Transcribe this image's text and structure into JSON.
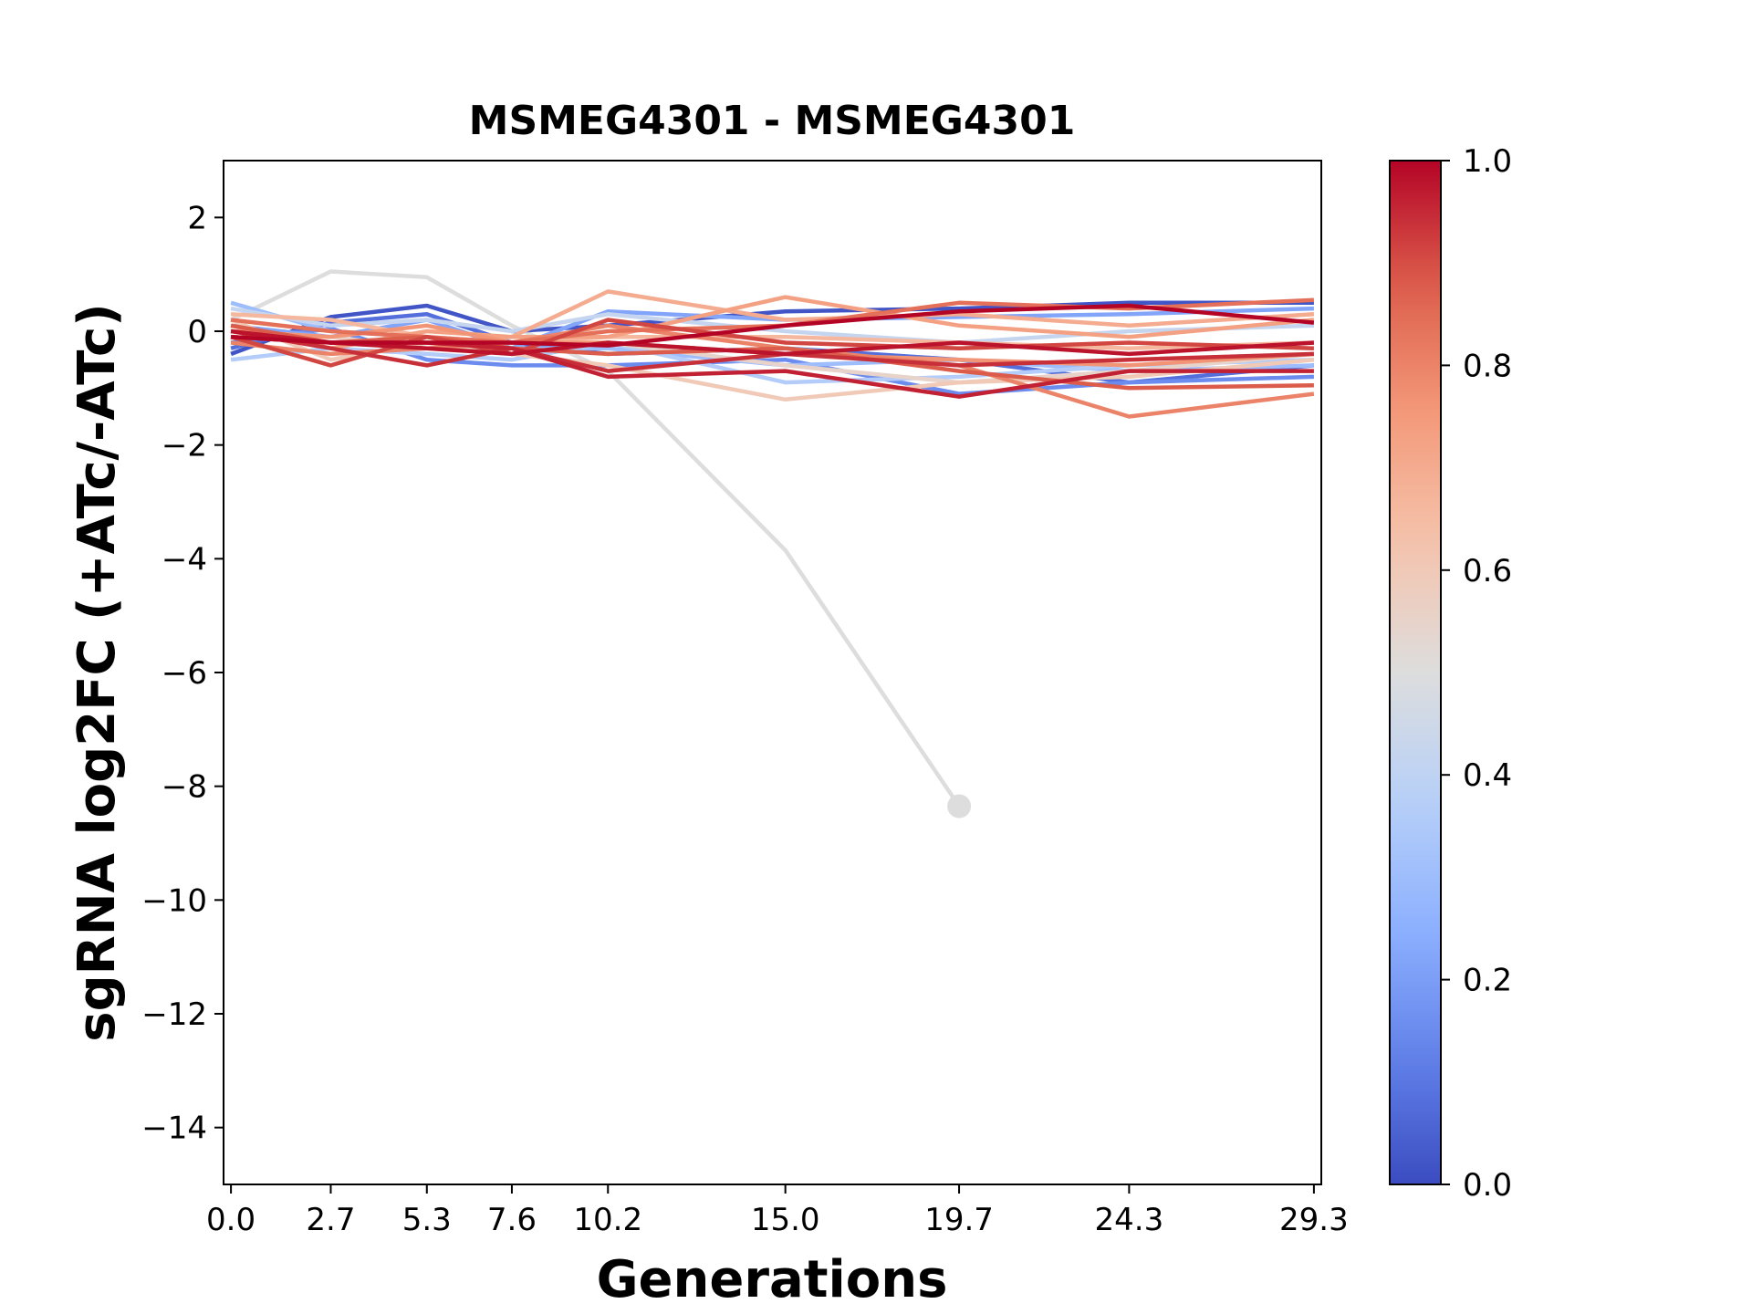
{
  "chart_data": {
    "type": "line",
    "title": "MSMEG4301 - MSMEG4301",
    "xlabel": "Generations",
    "ylabel": "sgRNA log2FC (+ATc/-ATc)",
    "x_ticks": [
      "0.0",
      "2.7",
      "5.3",
      "7.6",
      "10.2",
      "15.0",
      "19.7",
      "24.3",
      "29.3"
    ],
    "y_ticks": [
      "2",
      "0",
      "−2",
      "−4",
      "−6",
      "−8",
      "−10",
      "−12",
      "−14"
    ],
    "xlim": [
      -0.2,
      29.5
    ],
    "ylim": [
      -15,
      3
    ],
    "colorbar": {
      "cmap": "coolwarm",
      "range": [
        0,
        1
      ],
      "ticks": [
        "0.0",
        "0.2",
        "0.4",
        "0.6",
        "0.8",
        "1.0"
      ]
    },
    "x": [
      0.0,
      2.7,
      5.3,
      7.6,
      10.2,
      15.0,
      19.7,
      24.3,
      29.3
    ],
    "series": [
      {
        "c": 0.5,
        "values": [
          0.2,
          1.05,
          0.95,
          0.1,
          -0.7,
          -3.85,
          -8.35,
          null,
          null
        ],
        "end_marker": true
      },
      {
        "c": 0.02,
        "values": [
          -0.4,
          0.25,
          0.45,
          0.0,
          0.1,
          0.35,
          0.4,
          0.5,
          0.5
        ]
      },
      {
        "c": 0.08,
        "values": [
          -0.3,
          0.15,
          0.3,
          -0.2,
          -0.4,
          -0.3,
          -0.5,
          -0.9,
          -0.6
        ]
      },
      {
        "c": 0.15,
        "values": [
          -0.2,
          0.05,
          -0.5,
          -0.6,
          -0.6,
          -0.5,
          -1.1,
          -0.9,
          -0.8
        ]
      },
      {
        "c": 0.22,
        "values": [
          0.1,
          -0.1,
          0.2,
          -0.3,
          0.35,
          0.2,
          0.25,
          0.3,
          0.4
        ]
      },
      {
        "c": 0.3,
        "values": [
          0.5,
          0.0,
          -0.1,
          -0.3,
          -0.3,
          -0.6,
          -0.5,
          -0.7,
          -0.6
        ]
      },
      {
        "c": 0.36,
        "values": [
          -0.5,
          -0.3,
          -0.4,
          -0.5,
          -0.2,
          -0.9,
          -0.8,
          -0.6,
          -0.5
        ]
      },
      {
        "c": 0.42,
        "values": [
          0.4,
          0.1,
          0.2,
          0.0,
          0.3,
          0.0,
          -0.2,
          0.0,
          0.1
        ]
      },
      {
        "c": 0.55,
        "values": [
          0.0,
          -0.1,
          -0.3,
          -0.4,
          -0.2,
          -0.6,
          -0.9,
          -0.7,
          -0.4
        ]
      },
      {
        "c": 0.6,
        "values": [
          0.2,
          -0.5,
          -0.2,
          -0.4,
          -0.6,
          -1.2,
          -0.9,
          -0.8,
          -0.5
        ]
      },
      {
        "c": 0.66,
        "values": [
          0.3,
          0.2,
          -0.1,
          -0.2,
          -0.1,
          -0.1,
          -0.2,
          -0.3,
          -0.2
        ]
      },
      {
        "c": 0.7,
        "values": [
          -0.1,
          -0.2,
          -0.2,
          -0.1,
          0.7,
          0.2,
          0.3,
          0.1,
          0.3
        ]
      },
      {
        "c": 0.73,
        "values": [
          0.1,
          -0.3,
          0.0,
          -0.1,
          -0.1,
          0.6,
          0.1,
          -0.1,
          0.2
        ]
      },
      {
        "c": 0.76,
        "values": [
          0.0,
          -0.1,
          0.1,
          -0.2,
          -0.2,
          -0.4,
          -0.5,
          -0.6,
          -0.4
        ]
      },
      {
        "c": 0.8,
        "values": [
          -0.2,
          -0.4,
          -0.3,
          -0.2,
          0.1,
          -0.3,
          -0.6,
          -1.5,
          -1.1
        ]
      },
      {
        "c": 0.84,
        "values": [
          0.2,
          0.0,
          -0.1,
          -0.2,
          0.0,
          0.1,
          0.5,
          0.4,
          0.55
        ]
      },
      {
        "c": 0.88,
        "values": [
          0.1,
          -0.2,
          -0.1,
          -0.3,
          -0.4,
          -0.3,
          -0.7,
          -1.0,
          -0.95
        ]
      },
      {
        "c": 0.91,
        "values": [
          -0.1,
          -0.6,
          -0.1,
          -0.4,
          0.2,
          -0.2,
          -0.3,
          -0.2,
          -0.3
        ]
      },
      {
        "c": 0.94,
        "values": [
          0.0,
          -0.3,
          -0.6,
          -0.3,
          -0.7,
          -0.4,
          -0.6,
          -0.5,
          -0.4
        ]
      },
      {
        "c": 0.96,
        "values": [
          -0.1,
          -0.2,
          -0.2,
          -0.3,
          -0.8,
          -0.7,
          -1.15,
          -0.7,
          -0.7
        ]
      },
      {
        "c": 0.98,
        "values": [
          0.0,
          -0.2,
          -0.3,
          -0.4,
          -0.2,
          -0.4,
          -0.2,
          -0.4,
          -0.2
        ]
      },
      {
        "c": 1.0,
        "values": [
          -0.1,
          -0.2,
          -0.2,
          -0.2,
          -0.25,
          0.1,
          0.35,
          0.45,
          0.15
        ]
      }
    ]
  }
}
